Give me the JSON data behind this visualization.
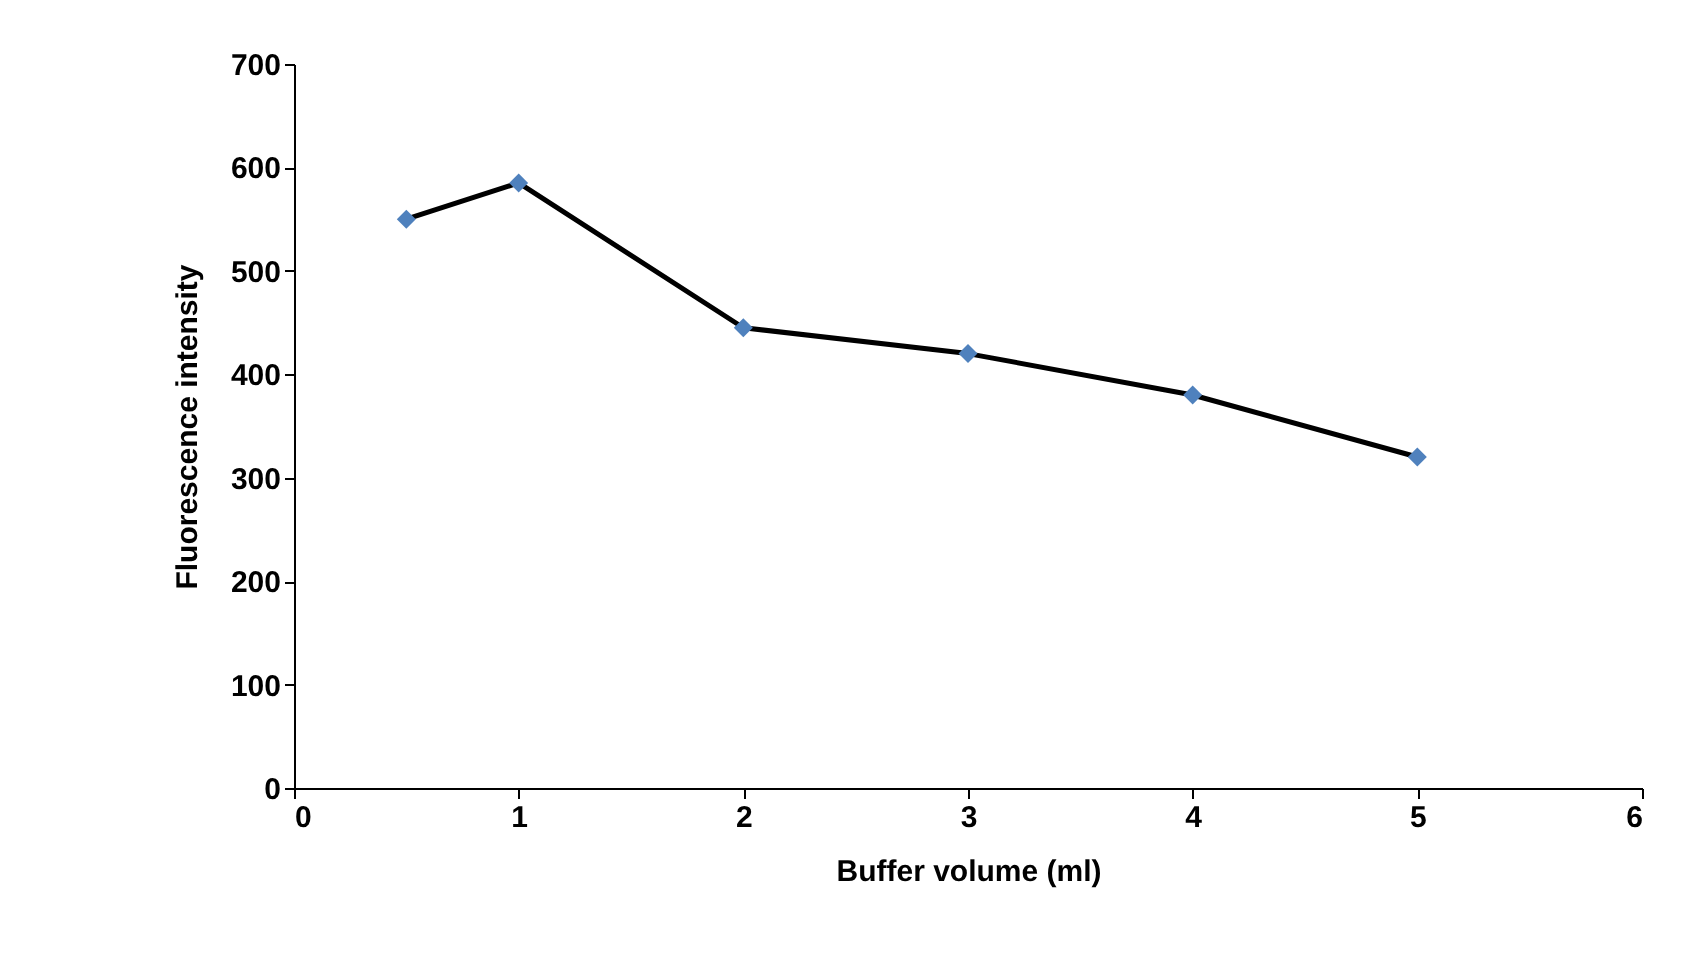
{
  "chart_data": {
    "type": "line",
    "xlabel": "Buffer volume (ml)",
    "ylabel": "Fluorescence intensity",
    "series": [
      {
        "color": "#4f81bd",
        "x": [
          0.5,
          1,
          2,
          3,
          4,
          5
        ],
        "values": [
          550,
          585,
          445,
          420,
          380,
          320
        ]
      }
    ],
    "xlim": [
      0,
      6
    ],
    "xticks": [
      0,
      1,
      2,
      3,
      4,
      5,
      6
    ],
    "ylim": [
      0,
      700
    ],
    "yticks": [
      0,
      100,
      200,
      300,
      400,
      500,
      600,
      700
    ],
    "grid": false,
    "marker": "diamond",
    "line_style": "solid"
  }
}
